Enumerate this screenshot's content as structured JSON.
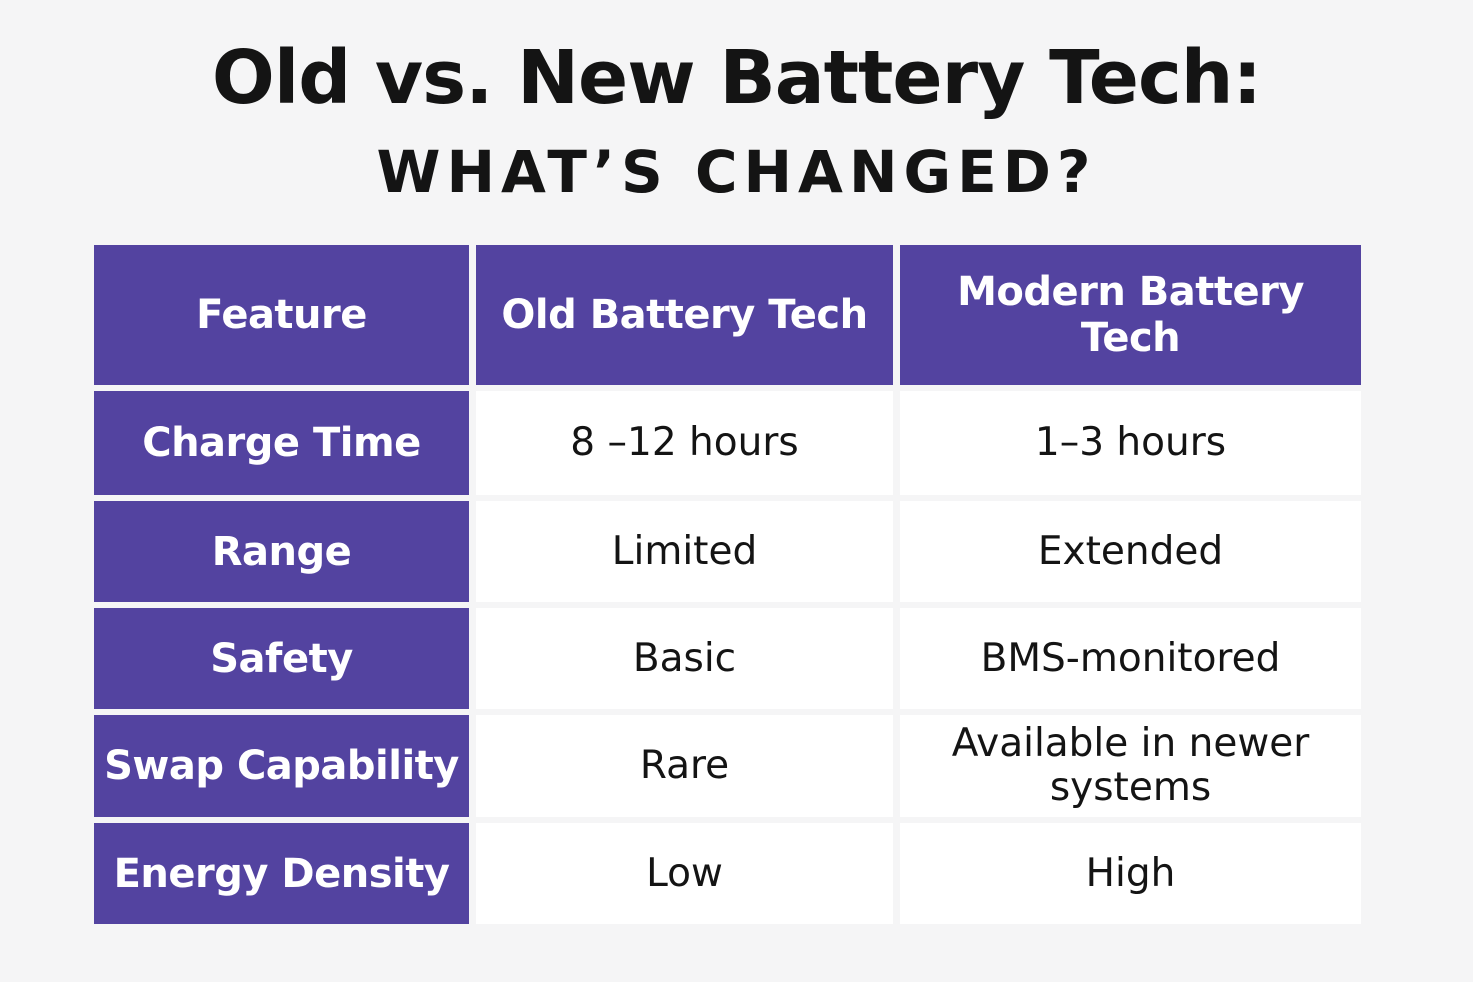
{
  "header": {
    "title": "Old vs. New Battery Tech:",
    "subtitle": "WHAT’S CHANGED?"
  },
  "table": {
    "columns": [
      "Feature",
      "Old Battery Tech",
      "Modern Battery Tech"
    ],
    "rows": [
      {
        "feature": "Charge Time",
        "old": "8 –12 hours",
        "modern": "1–3 hours"
      },
      {
        "feature": "Range",
        "old": "Limited",
        "modern": "Extended"
      },
      {
        "feature": "Safety",
        "old": "Basic",
        "modern": "BMS-monitored"
      },
      {
        "feature": "Swap Capability",
        "old": "Rare",
        "modern": "Available in newer systems"
      },
      {
        "feature": "Energy Density",
        "old": "Low",
        "modern": "High"
      }
    ]
  },
  "colors": {
    "header_fill": "#5343a0",
    "page_background": "#f5f5f6",
    "cell_background": "#ffffff",
    "text": "#141414"
  }
}
